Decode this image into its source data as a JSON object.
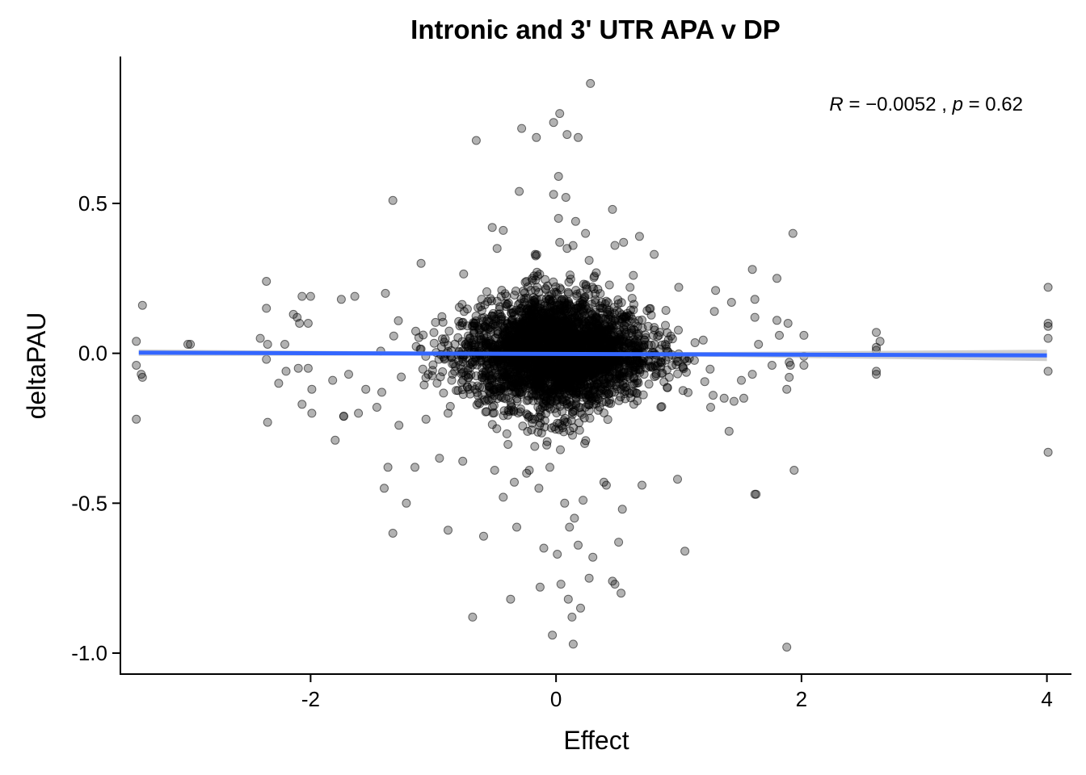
{
  "chart_data": {
    "type": "scatter",
    "title": "Intronic and 3' UTR APA v DP",
    "xlabel": "Effect",
    "ylabel": "deltaPAU",
    "xlim": [
      -3.55,
      4.2
    ],
    "ylim": [
      -1.07,
      0.99
    ],
    "xticks": [
      -2,
      0,
      2,
      4
    ],
    "xtick_labels": [
      "-2",
      "0",
      "2",
      "4"
    ],
    "yticks": [
      -1.0,
      -0.5,
      0.0,
      0.5
    ],
    "ytick_labels": [
      "-1.0",
      "-0.5",
      "0.0",
      "0.5"
    ],
    "grid": false,
    "point_color": "#000000",
    "point_opacity": 0.3,
    "annotation": {
      "r_label": "R",
      "r_value": "= −0.0052 ,",
      "p_label": "p",
      "p_value": "= 0.62"
    },
    "regression_line": {
      "color": "#3366FF",
      "band_color": "#BBBBBB",
      "x": [
        -3.4,
        4.0
      ],
      "y": [
        0.002,
        -0.007
      ]
    },
    "points": [
      [
        0.28,
        0.9
      ],
      [
        0.03,
        0.8
      ],
      [
        -0.02,
        0.77
      ],
      [
        -0.28,
        0.75
      ],
      [
        0.18,
        0.72
      ],
      [
        0.09,
        0.73
      ],
      [
        -0.65,
        0.71
      ],
      [
        -0.16,
        0.72
      ],
      [
        0.02,
        0.59
      ],
      [
        -0.3,
        0.54
      ],
      [
        -0.02,
        0.53
      ],
      [
        0.08,
        0.52
      ],
      [
        -1.33,
        0.51
      ],
      [
        0.46,
        0.48
      ],
      [
        0.16,
        0.44
      ],
      [
        0.02,
        0.45
      ],
      [
        -0.52,
        0.42
      ],
      [
        -0.43,
        0.41
      ],
      [
        0.24,
        0.4
      ],
      [
        0.55,
        0.37
      ],
      [
        0.68,
        0.39
      ],
      [
        0.48,
        0.36
      ],
      [
        1.93,
        0.4
      ],
      [
        0.8,
        0.33
      ],
      [
        -0.48,
        0.35
      ],
      [
        0.09,
        0.35
      ],
      [
        -1.1,
        0.3
      ],
      [
        1.6,
        0.28
      ],
      [
        1.8,
        0.25
      ],
      [
        -2.36,
        0.24
      ],
      [
        0.63,
        0.26
      ],
      [
        0.27,
        0.31
      ],
      [
        -0.17,
        0.33
      ],
      [
        0.03,
        0.37
      ],
      [
        1.0,
        0.22
      ],
      [
        1.3,
        0.21
      ],
      [
        -2.0,
        0.19
      ],
      [
        -2.07,
        0.19
      ],
      [
        -3.37,
        0.16
      ],
      [
        -2.36,
        0.15
      ],
      [
        -2.14,
        0.13
      ],
      [
        -1.75,
        0.18
      ],
      [
        -1.39,
        0.2
      ],
      [
        -1.64,
        0.19
      ],
      [
        1.62,
        0.18
      ],
      [
        1.43,
        0.17
      ],
      [
        1.29,
        0.14
      ],
      [
        1.62,
        0.12
      ],
      [
        1.8,
        0.11
      ],
      [
        1.89,
        0.1
      ],
      [
        -2.11,
        0.12
      ],
      [
        -2.02,
        0.1
      ],
      [
        -2.09,
        0.1
      ],
      [
        -2.41,
        0.05
      ],
      [
        -2.35,
        0.03
      ],
      [
        -2.21,
        0.03
      ],
      [
        -3.42,
        0.04
      ],
      [
        -2.98,
        0.03
      ],
      [
        -3.0,
        0.03
      ],
      [
        4.01,
        0.22
      ],
      [
        4.01,
        0.1
      ],
      [
        4.01,
        0.09
      ],
      [
        4.01,
        0.05
      ],
      [
        4.01,
        -0.06
      ],
      [
        4.01,
        -0.33
      ],
      [
        2.61,
        0.07
      ],
      [
        2.61,
        0.02
      ],
      [
        2.64,
        0.04
      ],
      [
        2.61,
        0.01
      ],
      [
        2.61,
        -0.06
      ],
      [
        2.61,
        -0.07
      ],
      [
        2.02,
        0.06
      ],
      [
        2.02,
        -0.01
      ],
      [
        2.02,
        -0.04
      ],
      [
        1.9,
        -0.03
      ],
      [
        1.91,
        -0.04
      ],
      [
        1.9,
        -0.08
      ],
      [
        1.88,
        -0.12
      ],
      [
        1.76,
        -0.04
      ],
      [
        1.82,
        0.06
      ],
      [
        1.65,
        0.03
      ],
      [
        1.6,
        -0.07
      ],
      [
        1.53,
        -0.15
      ],
      [
        1.62,
        -0.47
      ],
      [
        1.63,
        -0.47
      ],
      [
        1.94,
        -0.39
      ],
      [
        1.88,
        -0.98
      ],
      [
        -3.42,
        -0.04
      ],
      [
        -3.38,
        -0.07
      ],
      [
        -3.37,
        -0.08
      ],
      [
        -3.42,
        -0.22
      ],
      [
        -2.36,
        -0.02
      ],
      [
        -2.35,
        -0.23
      ],
      [
        -2.26,
        -0.1
      ],
      [
        -2.2,
        -0.06
      ],
      [
        -2.1,
        -0.05
      ],
      [
        -2.02,
        -0.05
      ],
      [
        -1.99,
        -0.12
      ],
      [
        -1.99,
        -0.2
      ],
      [
        -2.07,
        -0.17
      ],
      [
        -1.8,
        -0.29
      ],
      [
        -1.73,
        -0.21
      ],
      [
        -1.73,
        -0.21
      ],
      [
        -1.61,
        -0.2
      ],
      [
        -1.46,
        -0.18
      ],
      [
        -1.37,
        -0.38
      ],
      [
        -1.4,
        -0.45
      ],
      [
        -1.33,
        -0.6
      ],
      [
        -1.22,
        -0.5
      ],
      [
        -1.15,
        -0.38
      ],
      [
        -0.88,
        -0.59
      ],
      [
        -0.76,
        -0.36
      ],
      [
        -0.95,
        -0.35
      ],
      [
        -0.68,
        -0.88
      ],
      [
        -0.59,
        -0.61
      ],
      [
        -0.37,
        -0.82
      ],
      [
        -0.32,
        -0.58
      ],
      [
        -0.43,
        -0.48
      ],
      [
        -0.13,
        -0.78
      ],
      [
        -0.1,
        -0.65
      ],
      [
        -0.03,
        -0.94
      ],
      [
        0.04,
        -0.77
      ],
      [
        0.01,
        -0.67
      ],
      [
        0.1,
        -0.82
      ],
      [
        0.13,
        -0.88
      ],
      [
        0.14,
        -0.97
      ],
      [
        0.2,
        -0.85
      ],
      [
        0.18,
        -0.64
      ],
      [
        0.27,
        -0.75
      ],
      [
        0.3,
        -0.68
      ],
      [
        0.46,
        -0.76
      ],
      [
        0.48,
        -0.77
      ],
      [
        0.53,
        -0.8
      ],
      [
        0.51,
        -0.63
      ],
      [
        0.54,
        -0.52
      ],
      [
        0.39,
        -0.43
      ],
      [
        0.41,
        -0.44
      ],
      [
        0.7,
        -0.44
      ],
      [
        0.99,
        -0.42
      ],
      [
        1.05,
        -0.66
      ],
      [
        0.11,
        -0.58
      ],
      [
        0.15,
        -0.55
      ],
      [
        0.07,
        -0.5
      ],
      [
        -0.14,
        -0.45
      ],
      [
        -0.24,
        -0.4
      ],
      [
        -0.34,
        -0.43
      ],
      [
        -0.5,
        -0.39
      ],
      [
        0.22,
        -0.49
      ],
      [
        -0.05,
        -0.38
      ],
      [
        1.41,
        -0.26
      ],
      [
        1.26,
        -0.18
      ],
      [
        1.45,
        -0.16
      ],
      [
        1.37,
        -0.15
      ],
      [
        1.28,
        -0.14
      ],
      [
        1.51,
        -0.09
      ],
      [
        -1.42,
        -0.13
      ],
      [
        -1.55,
        -0.12
      ],
      [
        -1.82,
        -0.09
      ],
      [
        -1.69,
        -0.07
      ],
      [
        -1.28,
        -0.24
      ],
      [
        -1.06,
        -0.22
      ],
      [
        -0.88,
        -0.2
      ]
    ],
    "cloud": {
      "n": 3200,
      "x_mean": 0.0,
      "x_sd": 0.38,
      "y_mean": 0.0,
      "y_sd": 0.085
    }
  }
}
